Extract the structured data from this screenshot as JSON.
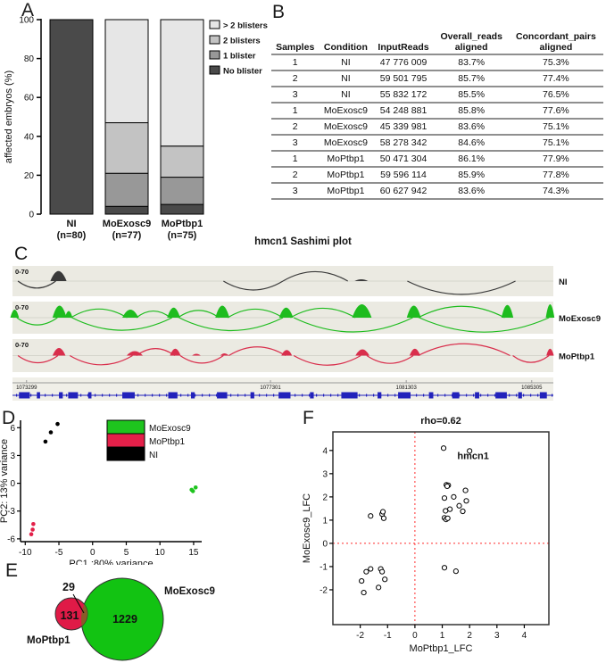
{
  "panels": {
    "A": {
      "label": "A"
    },
    "B": {
      "label": "B",
      "table": {
        "columns": [
          "Samples",
          "Condition",
          "InputReads",
          "Overall_reads\naligned",
          "Concordant_pairs\naligned"
        ],
        "rows": [
          [
            "1",
            "NI",
            "47 776 009",
            "83.7%",
            "75.3%"
          ],
          [
            "2",
            "NI",
            "59 501 795",
            "85.7%",
            "77.4%"
          ],
          [
            "3",
            "NI",
            "55 832 172",
            "85.5%",
            "76.5%"
          ],
          [
            "1",
            "MoExosc9",
            "54 248 881",
            "85.8%",
            "77.6%"
          ],
          [
            "2",
            "MoExosc9",
            "45 339 981",
            "83.6%",
            "75.1%"
          ],
          [
            "3",
            "MoExosc9",
            "58 278 342",
            "84.6%",
            "75.1%"
          ],
          [
            "1",
            "MoPtbp1",
            "50 471 304",
            "86.1%",
            "77.9%"
          ],
          [
            "2",
            "MoPtbp1",
            "59 596 114",
            "85.9%",
            "77.8%"
          ],
          [
            "3",
            "MoPtbp1",
            "60 627 942",
            "83.6%",
            "74.3%"
          ]
        ]
      }
    },
    "C": {
      "label": "C",
      "title": "hmcn1 Sashimi plot"
    },
    "D": {
      "label": "D"
    },
    "E": {
      "label": "E"
    },
    "F": {
      "label": "F"
    }
  },
  "colors": {
    "moexosc9_green": "#2cc42c",
    "moptbp1_red": "#e32049",
    "ni_black": "#000000",
    "gene_blue": "#2222bb"
  },
  "chart_data": [
    {
      "id": "A",
      "type": "bar",
      "stacked": true,
      "title": "",
      "ylabel": "affected embryos (%)",
      "ylim": [
        0,
        100
      ],
      "yticks": [
        0,
        20,
        40,
        60,
        80,
        100
      ],
      "categories": [
        "NI",
        "MoExosc9",
        "MoPtbp1"
      ],
      "category_sublabels": [
        "(n=80)",
        "(n=77)",
        "(n=75)"
      ],
      "category_colors": [
        "#000000",
        "#2cc42c",
        "#e32049"
      ],
      "series": [
        {
          "name": "No blister",
          "color": "#4a4a4a",
          "values": [
            100,
            4,
            5
          ]
        },
        {
          "name": "1 blister",
          "color": "#989898",
          "values": [
            0,
            17,
            14
          ]
        },
        {
          "name": "2 blisters",
          "color": "#c3c3c3",
          "values": [
            0,
            26,
            16
          ]
        },
        {
          "name": "> 2 blisters",
          "color": "#e6e6e6",
          "values": [
            0,
            53,
            65
          ]
        }
      ],
      "legend_order": [
        "> 2 blisters",
        "2 blisters",
        "1 blister",
        "No blister"
      ]
    },
    {
      "id": "C",
      "type": "sashimi",
      "title": "hmcn1 Sashimi plot",
      "tracks": [
        {
          "label": "NI",
          "color": "#3a3a3a",
          "scale": "0-70",
          "peaks": [
            [
              8.5,
              3,
              0.8
            ],
            [
              64.5,
              2.5,
              0.14
            ]
          ],
          "arcs": [
            [
              1,
              8,
              -1
            ],
            [
              39,
              50,
              -1
            ],
            [
              50,
              62,
              1
            ],
            [
              73,
              93,
              -1
            ]
          ]
        },
        {
          "label": "MoExosc9",
          "color": "#1ebc1e",
          "scale": "0-70",
          "peaks": [
            [
              0.4,
              1.6,
              0.6
            ],
            [
              8.7,
              2.6,
              0.9
            ],
            [
              10.4,
              1.4,
              0.5
            ],
            [
              21.8,
              3,
              0.6
            ],
            [
              29.8,
              2.4,
              0.75
            ],
            [
              38.8,
              2.6,
              0.9
            ],
            [
              50.6,
              2.6,
              0.75
            ],
            [
              64.6,
              3.6,
              1.0
            ],
            [
              74.2,
              2.6,
              0.9
            ],
            [
              91.5,
              2.2,
              0.95
            ],
            [
              99.4,
              1.6,
              1.0
            ]
          ],
          "arcs": [
            [
              10.8,
              21.2,
              1
            ],
            [
              22.9,
              29.2,
              1
            ],
            [
              30.6,
              38.2,
              1
            ],
            [
              39.8,
              50,
              1
            ],
            [
              51.4,
              63.4,
              1
            ],
            [
              75,
              91,
              1
            ],
            [
              0.8,
              8.3,
              -1
            ],
            [
              11,
              29.5,
              -1
            ],
            [
              30.8,
              50,
              -1
            ],
            [
              52,
              74,
              -1
            ],
            [
              75.2,
              99.2,
              -1
            ]
          ]
        },
        {
          "label": "MoPtbp1",
          "color": "#d92e4c",
          "scale": "0-70",
          "peaks": [
            [
              8.6,
              2.4,
              0.55
            ],
            [
              22.6,
              3,
              0.32
            ],
            [
              30.1,
              2,
              0.5
            ],
            [
              34,
              1.6,
              0.13
            ],
            [
              39.2,
              1.6,
              0.16
            ],
            [
              50.7,
              2,
              0.4
            ],
            [
              64.7,
              2.6,
              0.45
            ],
            [
              74.4,
              2,
              0.5
            ],
            [
              99.4,
              1.4,
              0.5
            ]
          ],
          "arcs": [
            [
              1,
              8.4,
              -1
            ],
            [
              10.6,
              22.2,
              -1
            ],
            [
              22.9,
              30,
              1
            ],
            [
              31,
              39,
              -1
            ],
            [
              40,
              50.5,
              1
            ],
            [
              52,
              64.4,
              -1
            ],
            [
              65.5,
              74.1,
              -1
            ],
            [
              75,
              92,
              1
            ],
            [
              92.5,
              99.2,
              -1
            ]
          ]
        }
      ],
      "ruler_labels": [
        {
          "text": "1073299",
          "x": 2.6
        },
        {
          "text": "1077301",
          "x": 47.7
        },
        {
          "text": "1081303",
          "x": 72.8
        },
        {
          "text": "1085305",
          "x": 96
        }
      ],
      "gene_model": {
        "color": "#2222bb",
        "exons": [
          [
            1.2,
            2
          ],
          [
            4.5,
            0.6
          ],
          [
            8.6,
            0.7
          ],
          [
            10.3,
            1.8
          ],
          [
            14,
            0.6
          ],
          [
            20.3,
            2.3
          ],
          [
            28.8,
            1.7
          ],
          [
            33,
            0.7
          ],
          [
            37.8,
            1.9
          ],
          [
            44,
            0.7
          ],
          [
            49.2,
            2.2
          ],
          [
            55,
            0.7
          ],
          [
            60.8,
            3
          ],
          [
            67.5,
            0.7
          ],
          [
            71.3,
            2.3
          ],
          [
            77,
            0.8
          ],
          [
            81.3,
            1.3
          ],
          [
            85.5,
            0.8
          ],
          [
            89.3,
            2.1
          ],
          [
            93.5,
            0.7
          ],
          [
            97.5,
            1.3
          ]
        ]
      }
    },
    {
      "id": "D",
      "type": "scatter",
      "xlabel": "PC1 :80% variance",
      "ylabel": "PC2: 13% variance",
      "xlim": [
        -10.7,
        16.2
      ],
      "ylim": [
        -6.3,
        6.8
      ],
      "xticks": [
        -10,
        -5,
        0,
        5,
        10,
        15
      ],
      "yticks": [
        -6,
        -3,
        0,
        3,
        6
      ],
      "legend": [
        "MoExosc9",
        "MoPtbp1",
        "NI"
      ],
      "series": [
        {
          "name": "MoExosc9",
          "color": "#1ec41e",
          "points": [
            [
              14.7,
              -0.7
            ],
            [
              15.3,
              -0.45
            ],
            [
              14.9,
              -0.85
            ]
          ]
        },
        {
          "name": "MoPtbp1",
          "color": "#e32049",
          "points": [
            [
              -8.8,
              -4.4
            ],
            [
              -8.9,
              -5.0
            ],
            [
              -9.1,
              -5.5
            ]
          ]
        },
        {
          "name": "NI",
          "color": "#000000",
          "points": [
            [
              -7.0,
              4.5
            ],
            [
              -6.2,
              5.5
            ],
            [
              -5.2,
              6.4
            ]
          ]
        }
      ]
    },
    {
      "id": "E",
      "type": "venn",
      "sets": [
        {
          "name": "MoPtbp1",
          "color": "#e01a47",
          "count": "131"
        },
        {
          "name": "MoExosc9",
          "color": "#12c312",
          "count": "1229"
        }
      ],
      "overlap": "29",
      "overlap_color": "#8a5a28"
    },
    {
      "id": "F",
      "type": "scatter",
      "box": true,
      "title": "rho=0.62",
      "xlabel": "MoPtbp1_LFC",
      "ylabel": "MoExosc9_LFC",
      "xlim": [
        -3.0,
        4.9
      ],
      "ylim": [
        -3.5,
        4.8
      ],
      "xticks": [
        -2,
        -1,
        0,
        1,
        2,
        3,
        4
      ],
      "yticks": [
        -2,
        -1,
        0,
        1,
        2,
        3,
        4
      ],
      "crosshair_color": "#ff2a2a",
      "annotation": {
        "text": "hmcn1",
        "x": 1.55,
        "y": 3.62
      },
      "points": [
        [
          1.05,
          4.1
        ],
        [
          2.0,
          3.98
        ],
        [
          1.15,
          2.52
        ],
        [
          1.22,
          2.5
        ],
        [
          1.18,
          2.46
        ],
        [
          1.85,
          2.28
        ],
        [
          1.42,
          2.0
        ],
        [
          1.08,
          1.95
        ],
        [
          1.62,
          1.62
        ],
        [
          1.88,
          1.83
        ],
        [
          1.28,
          1.47
        ],
        [
          1.12,
          1.4
        ],
        [
          1.75,
          1.38
        ],
        [
          1.08,
          1.1
        ],
        [
          1.14,
          1.03
        ],
        [
          1.2,
          1.08
        ],
        [
          -1.62,
          1.18
        ],
        [
          -1.2,
          1.26
        ],
        [
          -1.17,
          1.36
        ],
        [
          -1.14,
          1.08
        ],
        [
          -1.95,
          -1.62
        ],
        [
          -1.78,
          -1.22
        ],
        [
          -1.62,
          -1.1
        ],
        [
          -1.25,
          -1.1
        ],
        [
          -1.2,
          -1.22
        ],
        [
          -1.1,
          -1.55
        ],
        [
          -1.33,
          -1.9
        ],
        [
          -1.87,
          -2.12
        ],
        [
          1.08,
          -1.05
        ],
        [
          1.5,
          -1.2
        ]
      ]
    }
  ]
}
